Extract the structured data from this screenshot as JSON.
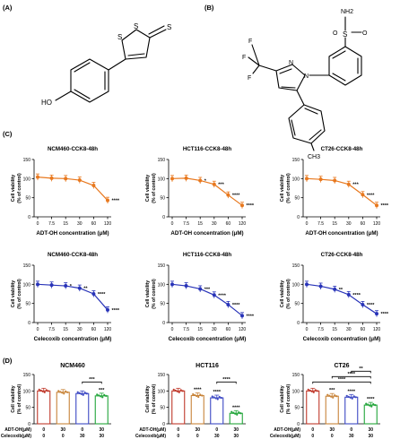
{
  "panels": {
    "A": "(A)",
    "B": "(B)",
    "C": "(C)",
    "D": "(D)"
  },
  "molecule_a": {
    "atoms": [
      "S",
      "S",
      "S",
      "HO"
    ]
  },
  "molecule_b": {
    "atoms": [
      "NH2",
      "S",
      "O",
      "O",
      "N",
      "N",
      "F",
      "F",
      "F",
      "CH3"
    ]
  },
  "colors": {
    "adt_oh": "#E8781E",
    "celecoxib": "#2833B8",
    "control_bar": "#C0392B",
    "adt_bar": "#C8843A",
    "cel_bar": "#3D49C4",
    "combo_bar": "#22A53A",
    "sig_line": "#000000"
  },
  "chart_data": [
    {
      "type": "line",
      "title": "NCM460-CCK8-48h",
      "xlabel": "ADT-OH concentration (μM)",
      "ylabel": "Cell viability (% of control)",
      "x_tick_labels": [
        "0",
        "7.5",
        "15",
        "30",
        "60",
        "120"
      ],
      "y_ticks": [
        "0",
        "50",
        "100",
        "150"
      ],
      "ylim": [
        0,
        150
      ],
      "series": [
        {
          "values": [
            104,
            101,
            100,
            96,
            82,
            43
          ]
        }
      ],
      "significance": [
        "",
        "",
        "",
        "",
        "",
        "****"
      ]
    },
    {
      "type": "line",
      "title": "HCT116-CCK8-48h",
      "xlabel": "ADT-OH concentration (μM)",
      "ylabel": "Cell viability (% of control)",
      "x_tick_labels": [
        "0",
        "7.5",
        "15",
        "30",
        "60",
        "120"
      ],
      "y_ticks": [
        "0",
        "50",
        "100",
        "150"
      ],
      "ylim": [
        0,
        150
      ],
      "series": [
        {
          "values": [
            100,
            101,
            95,
            85,
            57,
            30
          ]
        }
      ],
      "significance": [
        "",
        "",
        "*",
        "***",
        "****",
        "****"
      ]
    },
    {
      "type": "line",
      "title": "CT26-CCK8-48h",
      "xlabel": "ADT-OH concentration (μM)",
      "ylabel": "Cell viability (% of control)",
      "x_tick_labels": [
        "0",
        "7.5",
        "15",
        "30",
        "60",
        "120"
      ],
      "y_ticks": [
        "0",
        "50",
        "100",
        "150"
      ],
      "ylim": [
        0,
        150
      ],
      "series": [
        {
          "values": [
            100,
            98,
            95,
            85,
            58,
            30
          ]
        }
      ],
      "significance": [
        "",
        "",
        "",
        "***",
        "****",
        "****"
      ]
    },
    {
      "type": "line",
      "title": "NCM460-CCK8-48h",
      "xlabel": "Celecoxib concentration (μM)",
      "ylabel": "Cell viability (% of control)",
      "x_tick_labels": [
        "0",
        "7.5",
        "15",
        "30",
        "60",
        "120"
      ],
      "y_ticks": [
        "0",
        "50",
        "100",
        "150"
      ],
      "ylim": [
        0,
        150
      ],
      "series": [
        {
          "values": [
            100,
            98,
            96,
            90,
            75,
            33
          ]
        }
      ],
      "significance": [
        "",
        "",
        "*",
        "**",
        "****",
        "****"
      ]
    },
    {
      "type": "line",
      "title": "HCT116-CCK8-48h",
      "xlabel": "Celecoxib concentration (μM)",
      "ylabel": "Cell viability (% of control)",
      "x_tick_labels": [
        "0",
        "7.5",
        "15",
        "30",
        "60",
        "120"
      ],
      "y_ticks": [
        "0",
        "50",
        "100",
        "150"
      ],
      "ylim": [
        0,
        150
      ],
      "series": [
        {
          "values": [
            100,
            96,
            88,
            72,
            47,
            18
          ]
        }
      ],
      "significance": [
        "",
        "",
        "***",
        "****",
        "****",
        "****"
      ]
    },
    {
      "type": "line",
      "title": "CT26-CCK8-48h",
      "xlabel": "Celecoxib concentration (μM)",
      "ylabel": "Cell viability (% of control)",
      "x_tick_labels": [
        "0",
        "7.5",
        "15",
        "30",
        "60",
        "120"
      ],
      "y_ticks": [
        "0",
        "50",
        "100",
        "150"
      ],
      "ylim": [
        0,
        150
      ],
      "series": [
        {
          "values": [
            100,
            95,
            87,
            73,
            47,
            23
          ]
        }
      ],
      "significance": [
        "",
        "",
        "**",
        "****",
        "****",
        "****"
      ]
    },
    {
      "type": "bar",
      "title": "NCM460",
      "ylabel": "Cell viability (% of control)",
      "y_ticks": [
        "0",
        "50",
        "100",
        "150"
      ],
      "ylim": [
        0,
        150
      ],
      "row_labels": [
        "ADT-OH(μM)",
        "Celecoxib(μM)"
      ],
      "columns": [
        [
          "0",
          "0"
        ],
        [
          "30",
          "0"
        ],
        [
          "0",
          "30"
        ],
        [
          "30",
          "30"
        ]
      ],
      "values": [
        100,
        96,
        92,
        85
      ],
      "bar_significance": [
        "",
        "",
        "",
        "***"
      ],
      "brackets": [
        {
          "from": 2,
          "to": 3,
          "label": "***"
        }
      ]
    },
    {
      "type": "bar",
      "title": "HCT116",
      "ylabel": "Cell viability (% of control)",
      "y_ticks": [
        "0",
        "50",
        "100",
        "150"
      ],
      "ylim": [
        0,
        150
      ],
      "row_labels": [
        "ADT-OH(μM)",
        "Celecoxib(μM)"
      ],
      "columns": [
        [
          "0",
          "0"
        ],
        [
          "30",
          "0"
        ],
        [
          "0",
          "30"
        ],
        [
          "30",
          "30"
        ]
      ],
      "values": [
        100,
        86,
        79,
        32
      ],
      "bar_significance": [
        "",
        "****",
        "****",
        "****"
      ],
      "brackets": [
        {
          "from": 2,
          "to": 3,
          "label": "****"
        }
      ]
    },
    {
      "type": "bar",
      "title": "CT26",
      "ylabel": "Cell viability (% of control)",
      "y_ticks": [
        "0",
        "50",
        "100",
        "150"
      ],
      "ylim": [
        0,
        150
      ],
      "row_labels": [
        "ADT-OH(μM)",
        "Celecoxib(μM)"
      ],
      "columns": [
        [
          "0",
          "0"
        ],
        [
          "30",
          "0"
        ],
        [
          "0",
          "30"
        ],
        [
          "30",
          "30"
        ]
      ],
      "values": [
        100,
        84,
        81,
        57
      ],
      "bar_significance": [
        "",
        "***",
        "****",
        "****"
      ],
      "brackets": [
        {
          "from": 0,
          "to": 3,
          "label": "****"
        },
        {
          "from": 1,
          "to": 3,
          "label": "****"
        },
        {
          "from": 2,
          "to": 3,
          "label": "**"
        }
      ]
    }
  ]
}
